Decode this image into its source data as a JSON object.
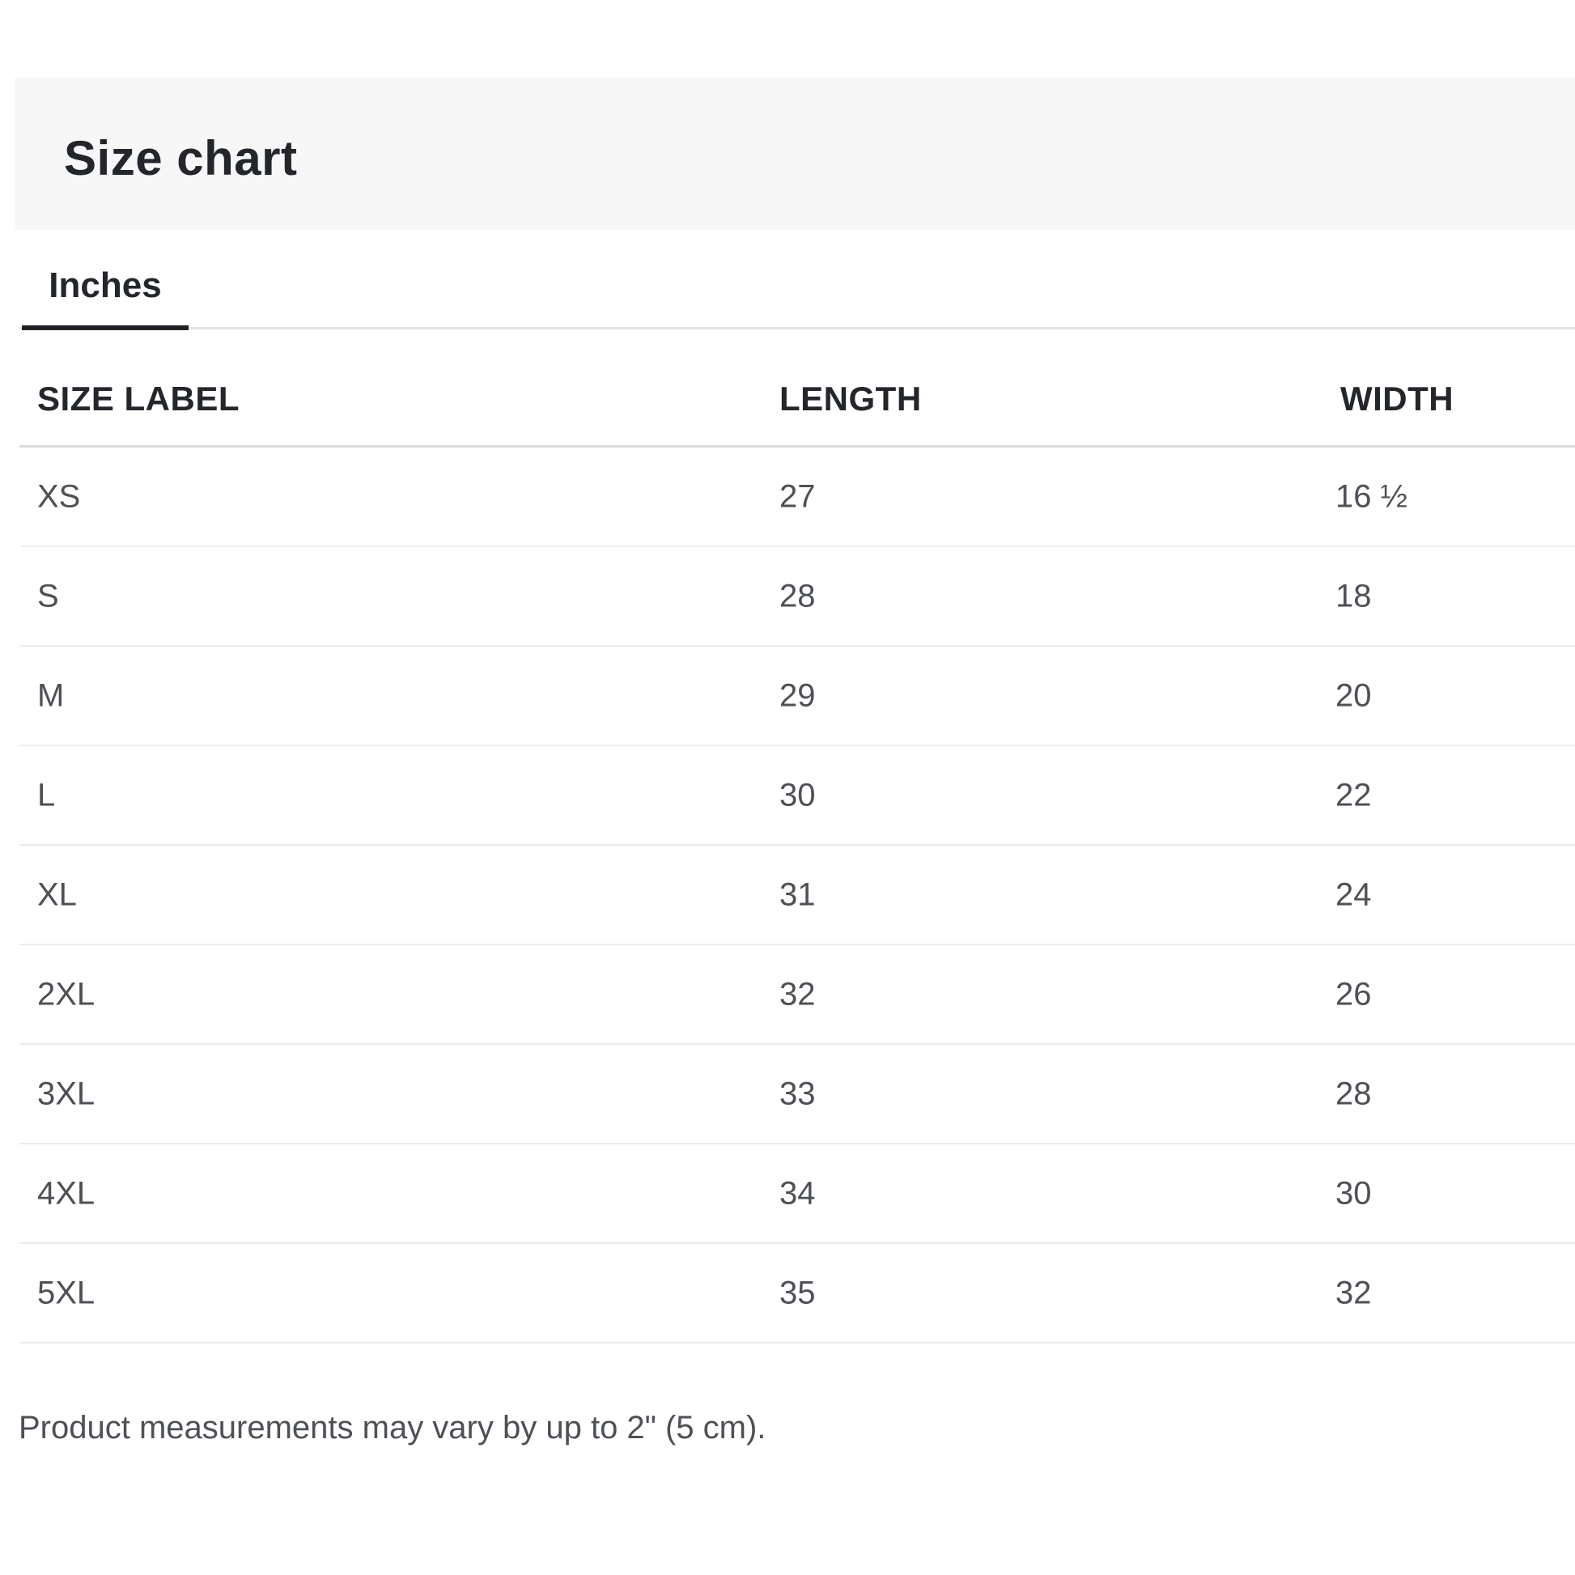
{
  "header": {
    "title": "Size chart"
  },
  "tabs": {
    "items": [
      {
        "label": "Inches",
        "active": true
      }
    ]
  },
  "table": {
    "columns": {
      "size": "SIZE LABEL",
      "length": "LENGTH",
      "width": "WIDTH"
    },
    "rows": [
      {
        "size": "XS",
        "length": "27",
        "width": "16 ½"
      },
      {
        "size": "S",
        "length": "28",
        "width": "18"
      },
      {
        "size": "M",
        "length": "29",
        "width": "20"
      },
      {
        "size": "L",
        "length": "30",
        "width": "22"
      },
      {
        "size": "XL",
        "length": "31",
        "width": "24"
      },
      {
        "size": "2XL",
        "length": "32",
        "width": "26"
      },
      {
        "size": "3XL",
        "length": "33",
        "width": "28"
      },
      {
        "size": "4XL",
        "length": "34",
        "width": "30"
      },
      {
        "size": "5XL",
        "length": "35",
        "width": "32"
      }
    ]
  },
  "footnote": "Product measurements may vary by up to 2\" (5 cm).",
  "colors": {
    "heading_text": "#23262a",
    "body_text": "#4d5156",
    "band_background": "#f7f7f7",
    "tab_underline": "#1f2226",
    "tab_baseline": "#e4e4e4",
    "header_separator": "#dcdcdc",
    "row_separator": "#ececec"
  }
}
